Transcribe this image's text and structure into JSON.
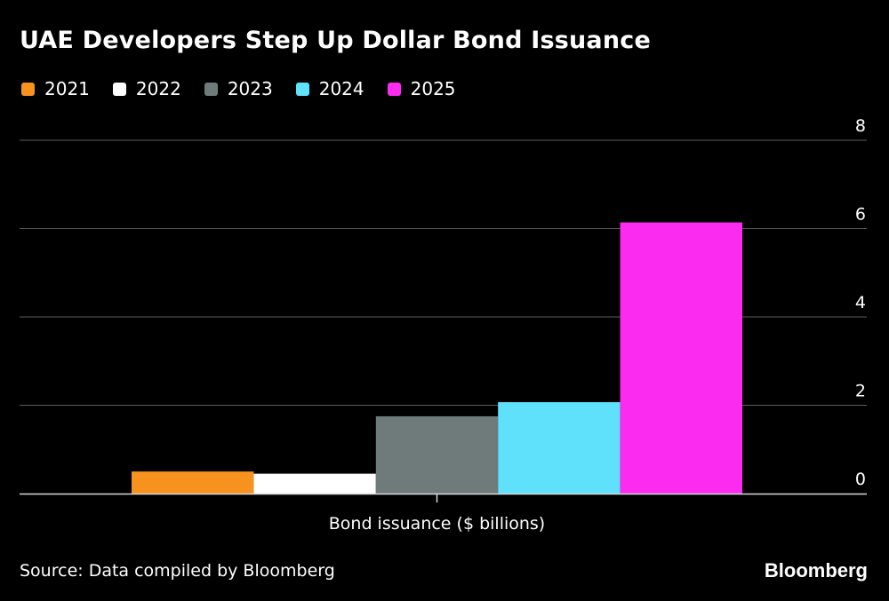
{
  "chart_data": {
    "type": "bar",
    "title": "UAE Developers Step Up Dollar Bond Issuance",
    "xlabel": "Bond issuance ($ billions)",
    "ylabel": "",
    "ylim": [
      0,
      8
    ],
    "yticks": [
      "0",
      "2",
      "4",
      "6",
      "8"
    ],
    "categories": [
      "Bond issuance ($ billions)"
    ],
    "series": [
      {
        "name": "2021",
        "color": "#f7921e",
        "values": [
          0.5
        ]
      },
      {
        "name": "2022",
        "color": "#ffffff",
        "values": [
          0.45
        ]
      },
      {
        "name": "2023",
        "color": "#6f7b7a",
        "values": [
          1.75
        ]
      },
      {
        "name": "2024",
        "color": "#5fe1fb",
        "values": [
          2.07
        ]
      },
      {
        "name": "2025",
        "color": "#fb2cf0",
        "values": [
          6.14
        ]
      }
    ],
    "grid": true,
    "legend_position": "top-left"
  },
  "footer": {
    "source": "Source: Data compiled by Bloomberg",
    "brand": "Bloomberg"
  }
}
